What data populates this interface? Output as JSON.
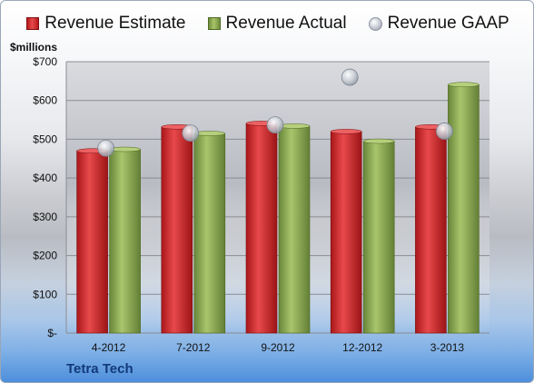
{
  "unit_label": "$millions",
  "company": "Tetra Tech",
  "colors": {
    "estimate": "#cc2a2c",
    "actual": "#8fae53",
    "gaap": "#c9cdd4"
  },
  "chart_data": {
    "type": "bar",
    "categories": [
      "4-2012",
      "7-2012",
      "9-2012",
      "12-2012",
      "3-2013"
    ],
    "series": [
      {
        "name": "Revenue Estimate",
        "type": "bar",
        "values": [
          470,
          532,
          541,
          520,
          532
        ]
      },
      {
        "name": "Revenue Actual",
        "type": "bar",
        "values": [
          474,
          515,
          534,
          495,
          641
        ]
      },
      {
        "name": "Revenue GAAP",
        "type": "scatter",
        "values": [
          477,
          516,
          537,
          660,
          521
        ]
      }
    ],
    "ylabel": "$millions",
    "ylim": [
      0,
      700
    ],
    "yticks": [
      0,
      100,
      200,
      300,
      400,
      500,
      600,
      700
    ],
    "ytick_labels": [
      "$-",
      "$100",
      "$200",
      "$300",
      "$400",
      "$500",
      "$600",
      "$700"
    ],
    "grid": true,
    "legend": "top"
  }
}
